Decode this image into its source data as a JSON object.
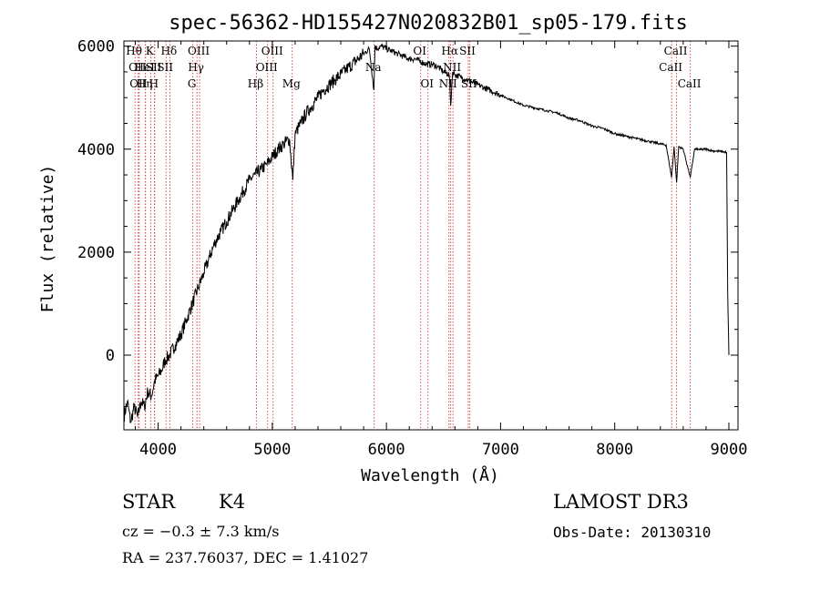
{
  "chart_data": {
    "type": "line",
    "title": "spec-56362-HD155427N020832B01_sp05-179.fits",
    "xlabel": "Wavelength (Å)",
    "ylabel": "Flux (relative)",
    "xlim": [
      3700,
      9080
    ],
    "ylim": [
      -1450,
      6100
    ],
    "xticks": [
      4000,
      5000,
      6000,
      7000,
      8000,
      9000
    ],
    "yticks": [
      0,
      2000,
      4000,
      6000
    ],
    "grid": false,
    "series": [
      {
        "name": "spectrum",
        "x": [
          3700,
          3730,
          3760,
          3790,
          3820,
          3850,
          3880,
          3910,
          3940,
          3970,
          4000,
          4030,
          4060,
          4100,
          4150,
          4200,
          4250,
          4300,
          4350,
          4400,
          4450,
          4500,
          4550,
          4600,
          4650,
          4700,
          4750,
          4800,
          4850,
          4900,
          4950,
          5000,
          5050,
          5100,
          5150,
          5180,
          5200,
          5250,
          5300,
          5350,
          5400,
          5450,
          5500,
          5550,
          5600,
          5650,
          5700,
          5750,
          5800,
          5850,
          5890,
          5900,
          5920,
          5950,
          6000,
          6050,
          6100,
          6150,
          6200,
          6250,
          6300,
          6350,
          6400,
          6450,
          6500,
          6550,
          6563,
          6580,
          6600,
          6650,
          6700,
          6750,
          6800,
          6850,
          6900,
          6950,
          7000,
          7100,
          7200,
          7300,
          7400,
          7500,
          7600,
          7700,
          7800,
          7900,
          8000,
          8100,
          8200,
          8300,
          8400,
          8450,
          8498,
          8520,
          8542,
          8560,
          8600,
          8662,
          8700,
          8750,
          8800,
          8850,
          8900,
          8950,
          8980,
          8990,
          9000
        ],
        "y": [
          -1200,
          -900,
          -1300,
          -1000,
          -1200,
          -900,
          -1000,
          -700,
          -800,
          -500,
          -400,
          -300,
          -100,
          0,
          200,
          400,
          700,
          1000,
          1300,
          1600,
          1900,
          2200,
          2400,
          2600,
          2800,
          3000,
          3200,
          3400,
          3500,
          3600,
          3700,
          3850,
          4000,
          4100,
          4200,
          3400,
          4300,
          4500,
          4700,
          4850,
          5000,
          5150,
          5250,
          5350,
          5450,
          5550,
          5650,
          5750,
          5850,
          5950,
          5150,
          6000,
          5950,
          6000,
          5950,
          5900,
          5850,
          5800,
          5750,
          5750,
          5700,
          5650,
          5650,
          5600,
          5500,
          5450,
          4850,
          5500,
          5450,
          5400,
          5350,
          5300,
          5250,
          5200,
          5150,
          5100,
          5050,
          4950,
          4850,
          4800,
          4750,
          4700,
          4600,
          4550,
          4450,
          4400,
          4300,
          4250,
          4200,
          4150,
          4100,
          4080,
          3450,
          4050,
          3350,
          4050,
          4000,
          3450,
          4000,
          3990,
          4000,
          3970,
          3960,
          3950,
          3930,
          1200,
          0
        ]
      }
    ],
    "lines": [
      {
        "w": 3797,
        "label": "Hθ",
        "row": 1
      },
      {
        "w": 3826,
        "label": "OII",
        "row": 2
      },
      {
        "w": 3835,
        "label": "OII",
        "row": 3
      },
      {
        "w": 3889,
        "label": "HeI",
        "row": 2
      },
      {
        "w": 3889,
        "label": "Hη",
        "row": 3
      },
      {
        "w": 3934,
        "label": "K",
        "row": 1
      },
      {
        "w": 3968,
        "label": "SII",
        "row": 2
      },
      {
        "w": 3970,
        "label": "H",
        "row": 3
      },
      {
        "w": 4102,
        "label": "Hδ",
        "row": 1
      },
      {
        "w": 4069,
        "label": "SII",
        "row": 2
      },
      {
        "w": 4304,
        "label": "G",
        "row": 3
      },
      {
        "w": 4340,
        "label": "Hγ",
        "row": 2
      },
      {
        "w": 4363,
        "label": "OIII",
        "row": 1
      },
      {
        "w": 4861,
        "label": "Hβ",
        "row": 3
      },
      {
        "w": 4959,
        "label": "OIII",
        "row": 2
      },
      {
        "w": 5007,
        "label": "OIII",
        "row": 1
      },
      {
        "w": 5175,
        "label": "Mg",
        "row": 3
      },
      {
        "w": 5893,
        "label": "Na",
        "row": 2
      },
      {
        "w": 6300,
        "label": "OI",
        "row": 1
      },
      {
        "w": 6364,
        "label": "OI",
        "row": 3
      },
      {
        "w": 6548,
        "label": "NII",
        "row": 3
      },
      {
        "w": 6563,
        "label": "Hα",
        "row": 1
      },
      {
        "w": 6583,
        "label": "NII",
        "row": 2
      },
      {
        "w": 6717,
        "label": "SII",
        "row": 1
      },
      {
        "w": 6731,
        "label": "SII",
        "row": 3
      },
      {
        "w": 8498,
        "label": "CaII",
        "row": 2
      },
      {
        "w": 8542,
        "label": "CaII",
        "row": 1
      },
      {
        "w": 8662,
        "label": "CaII",
        "row": 3
      }
    ]
  },
  "info": {
    "class": "STAR",
    "subclass": "K4",
    "survey": "LAMOST DR3",
    "cz": "cz = −0.3 ± 7.3 km/s",
    "obs_date": "Obs-Date: 20130310",
    "radec": "RA = 237.76037, DEC =    1.41027"
  },
  "colors": {
    "line_marker": "#cc2222",
    "spectrum": "#000000"
  }
}
